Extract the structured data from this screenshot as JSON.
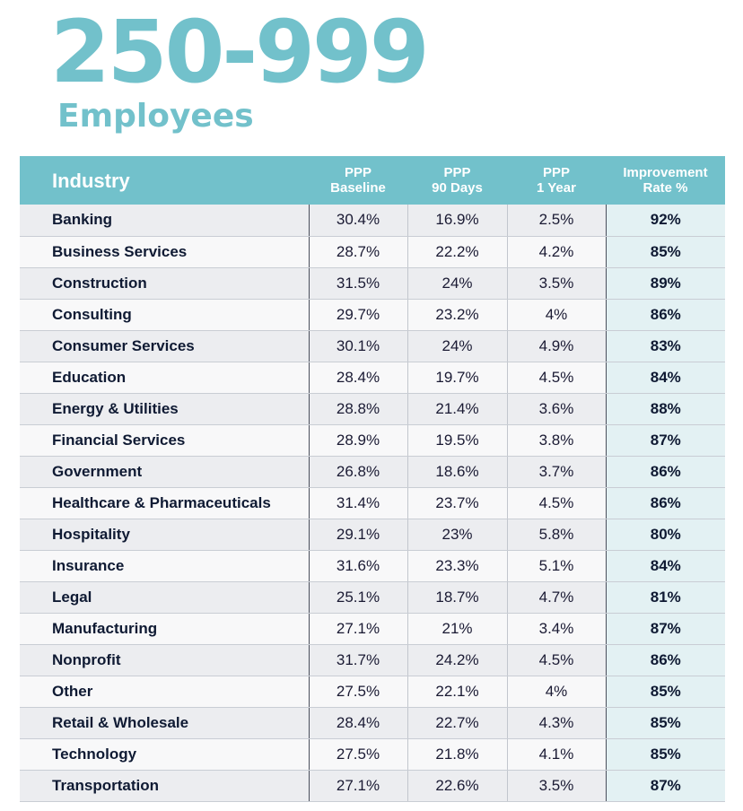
{
  "heading": {
    "range": "250-999",
    "unit": "Employees"
  },
  "table": {
    "headers": {
      "industry": "Industry",
      "baseline": [
        "PPP",
        "Baseline"
      ],
      "days90": [
        "PPP",
        "90 Days"
      ],
      "year1": [
        "PPP",
        "1 Year"
      ],
      "improvement": [
        "Improvement",
        "Rate %"
      ]
    },
    "rows": [
      {
        "industry": "Banking",
        "baseline": "30.4%",
        "days90": "16.9%",
        "year1": "2.5%",
        "improvement": "92%"
      },
      {
        "industry": "Business Services",
        "baseline": "28.7%",
        "days90": "22.2%",
        "year1": "4.2%",
        "improvement": "85%"
      },
      {
        "industry": "Construction",
        "baseline": "31.5%",
        "days90": "24%",
        "year1": "3.5%",
        "improvement": "89%"
      },
      {
        "industry": "Consulting",
        "baseline": "29.7%",
        "days90": "23.2%",
        "year1": "4%",
        "improvement": "86%"
      },
      {
        "industry": "Consumer Services",
        "baseline": "30.1%",
        "days90": "24%",
        "year1": "4.9%",
        "improvement": "83%"
      },
      {
        "industry": "Education",
        "baseline": "28.4%",
        "days90": "19.7%",
        "year1": "4.5%",
        "improvement": "84%"
      },
      {
        "industry": "Energy & Utilities",
        "baseline": "28.8%",
        "days90": "21.4%",
        "year1": "3.6%",
        "improvement": "88%"
      },
      {
        "industry": "Financial Services",
        "baseline": "28.9%",
        "days90": "19.5%",
        "year1": "3.8%",
        "improvement": "87%"
      },
      {
        "industry": "Government",
        "baseline": "26.8%",
        "days90": "18.6%",
        "year1": "3.7%",
        "improvement": "86%"
      },
      {
        "industry": "Healthcare & Pharmaceuticals",
        "baseline": "31.4%",
        "days90": "23.7%",
        "year1": "4.5%",
        "improvement": "86%"
      },
      {
        "industry": "Hospitality",
        "baseline": "29.1%",
        "days90": "23%",
        "year1": "5.8%",
        "improvement": "80%"
      },
      {
        "industry": "Insurance",
        "baseline": "31.6%",
        "days90": "23.3%",
        "year1": "5.1%",
        "improvement": "84%"
      },
      {
        "industry": "Legal",
        "baseline": "25.1%",
        "days90": "18.7%",
        "year1": "4.7%",
        "improvement": "81%"
      },
      {
        "industry": "Manufacturing",
        "baseline": "27.1%",
        "days90": "21%",
        "year1": "3.4%",
        "improvement": "87%"
      },
      {
        "industry": "Nonprofit",
        "baseline": "31.7%",
        "days90": "24.2%",
        "year1": "4.5%",
        "improvement": "86%"
      },
      {
        "industry": "Other",
        "baseline": "27.5%",
        "days90": "22.1%",
        "year1": "4%",
        "improvement": "85%"
      },
      {
        "industry": "Retail & Wholesale",
        "baseline": "28.4%",
        "days90": "22.7%",
        "year1": "4.3%",
        "improvement": "85%"
      },
      {
        "industry": "Technology",
        "baseline": "27.5%",
        "days90": "21.8%",
        "year1": "4.1%",
        "improvement": "85%"
      },
      {
        "industry": "Transportation",
        "baseline": "27.1%",
        "days90": "22.6%",
        "year1": "3.5%",
        "improvement": "87%"
      }
    ]
  },
  "colors": {
    "accent": "#72c1cb",
    "header_text": "#ffffff",
    "row_text": "#0f1a33",
    "improvement_bg": "#e3f1f3"
  }
}
